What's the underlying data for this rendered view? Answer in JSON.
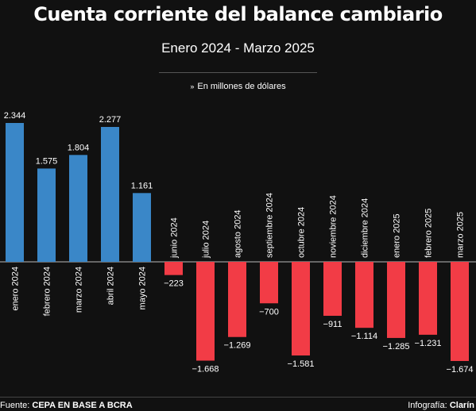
{
  "header": {
    "title": "Cuenta corriente del balance cambiario",
    "subtitle": "Enero 2024 - Marzo 2025",
    "unit_note": "En millones de dólares",
    "unit_note_marker": "»"
  },
  "footer": {
    "source_label": "Fuente:",
    "source_value": "CEPA EN BASE A BCRA",
    "credit_label": "Infografía:",
    "credit_value": "Clarín"
  },
  "colors": {
    "background": "#111111",
    "positive": "#3a87c8",
    "negative": "#f23c46",
    "text": "#ffffff"
  },
  "chart_data": {
    "type": "bar",
    "title": "Cuenta corriente del balance cambiario",
    "subtitle": "Enero 2024 - Marzo 2025",
    "ylabel": "En millones de dólares",
    "categories": [
      "enero 2024",
      "febrero 2024",
      "marzo 2024",
      "abril 2024",
      "mayo 2024",
      "junio 2024",
      "julio 2024",
      "agosto 2024",
      "septiembre 2024",
      "octubre 2024",
      "noviembre 2024",
      "diciembre 2024",
      "enero 2025",
      "febrero 2025",
      "marzo 2025"
    ],
    "values": [
      2344,
      1575,
      1804,
      2277,
      1161,
      -223,
      -1668,
      -1269,
      -700,
      -1581,
      -911,
      -1114,
      -1285,
      -1231,
      -1674
    ],
    "value_labels": [
      "2.344",
      "1.575",
      "1.804",
      "2.277",
      "1.161",
      "−223",
      "−1.668",
      "−1.269",
      "−700",
      "−1.581",
      "−911",
      "−1.114",
      "−1.285",
      "−1.231",
      "−1.674"
    ],
    "grid": false,
    "legend": "none"
  }
}
